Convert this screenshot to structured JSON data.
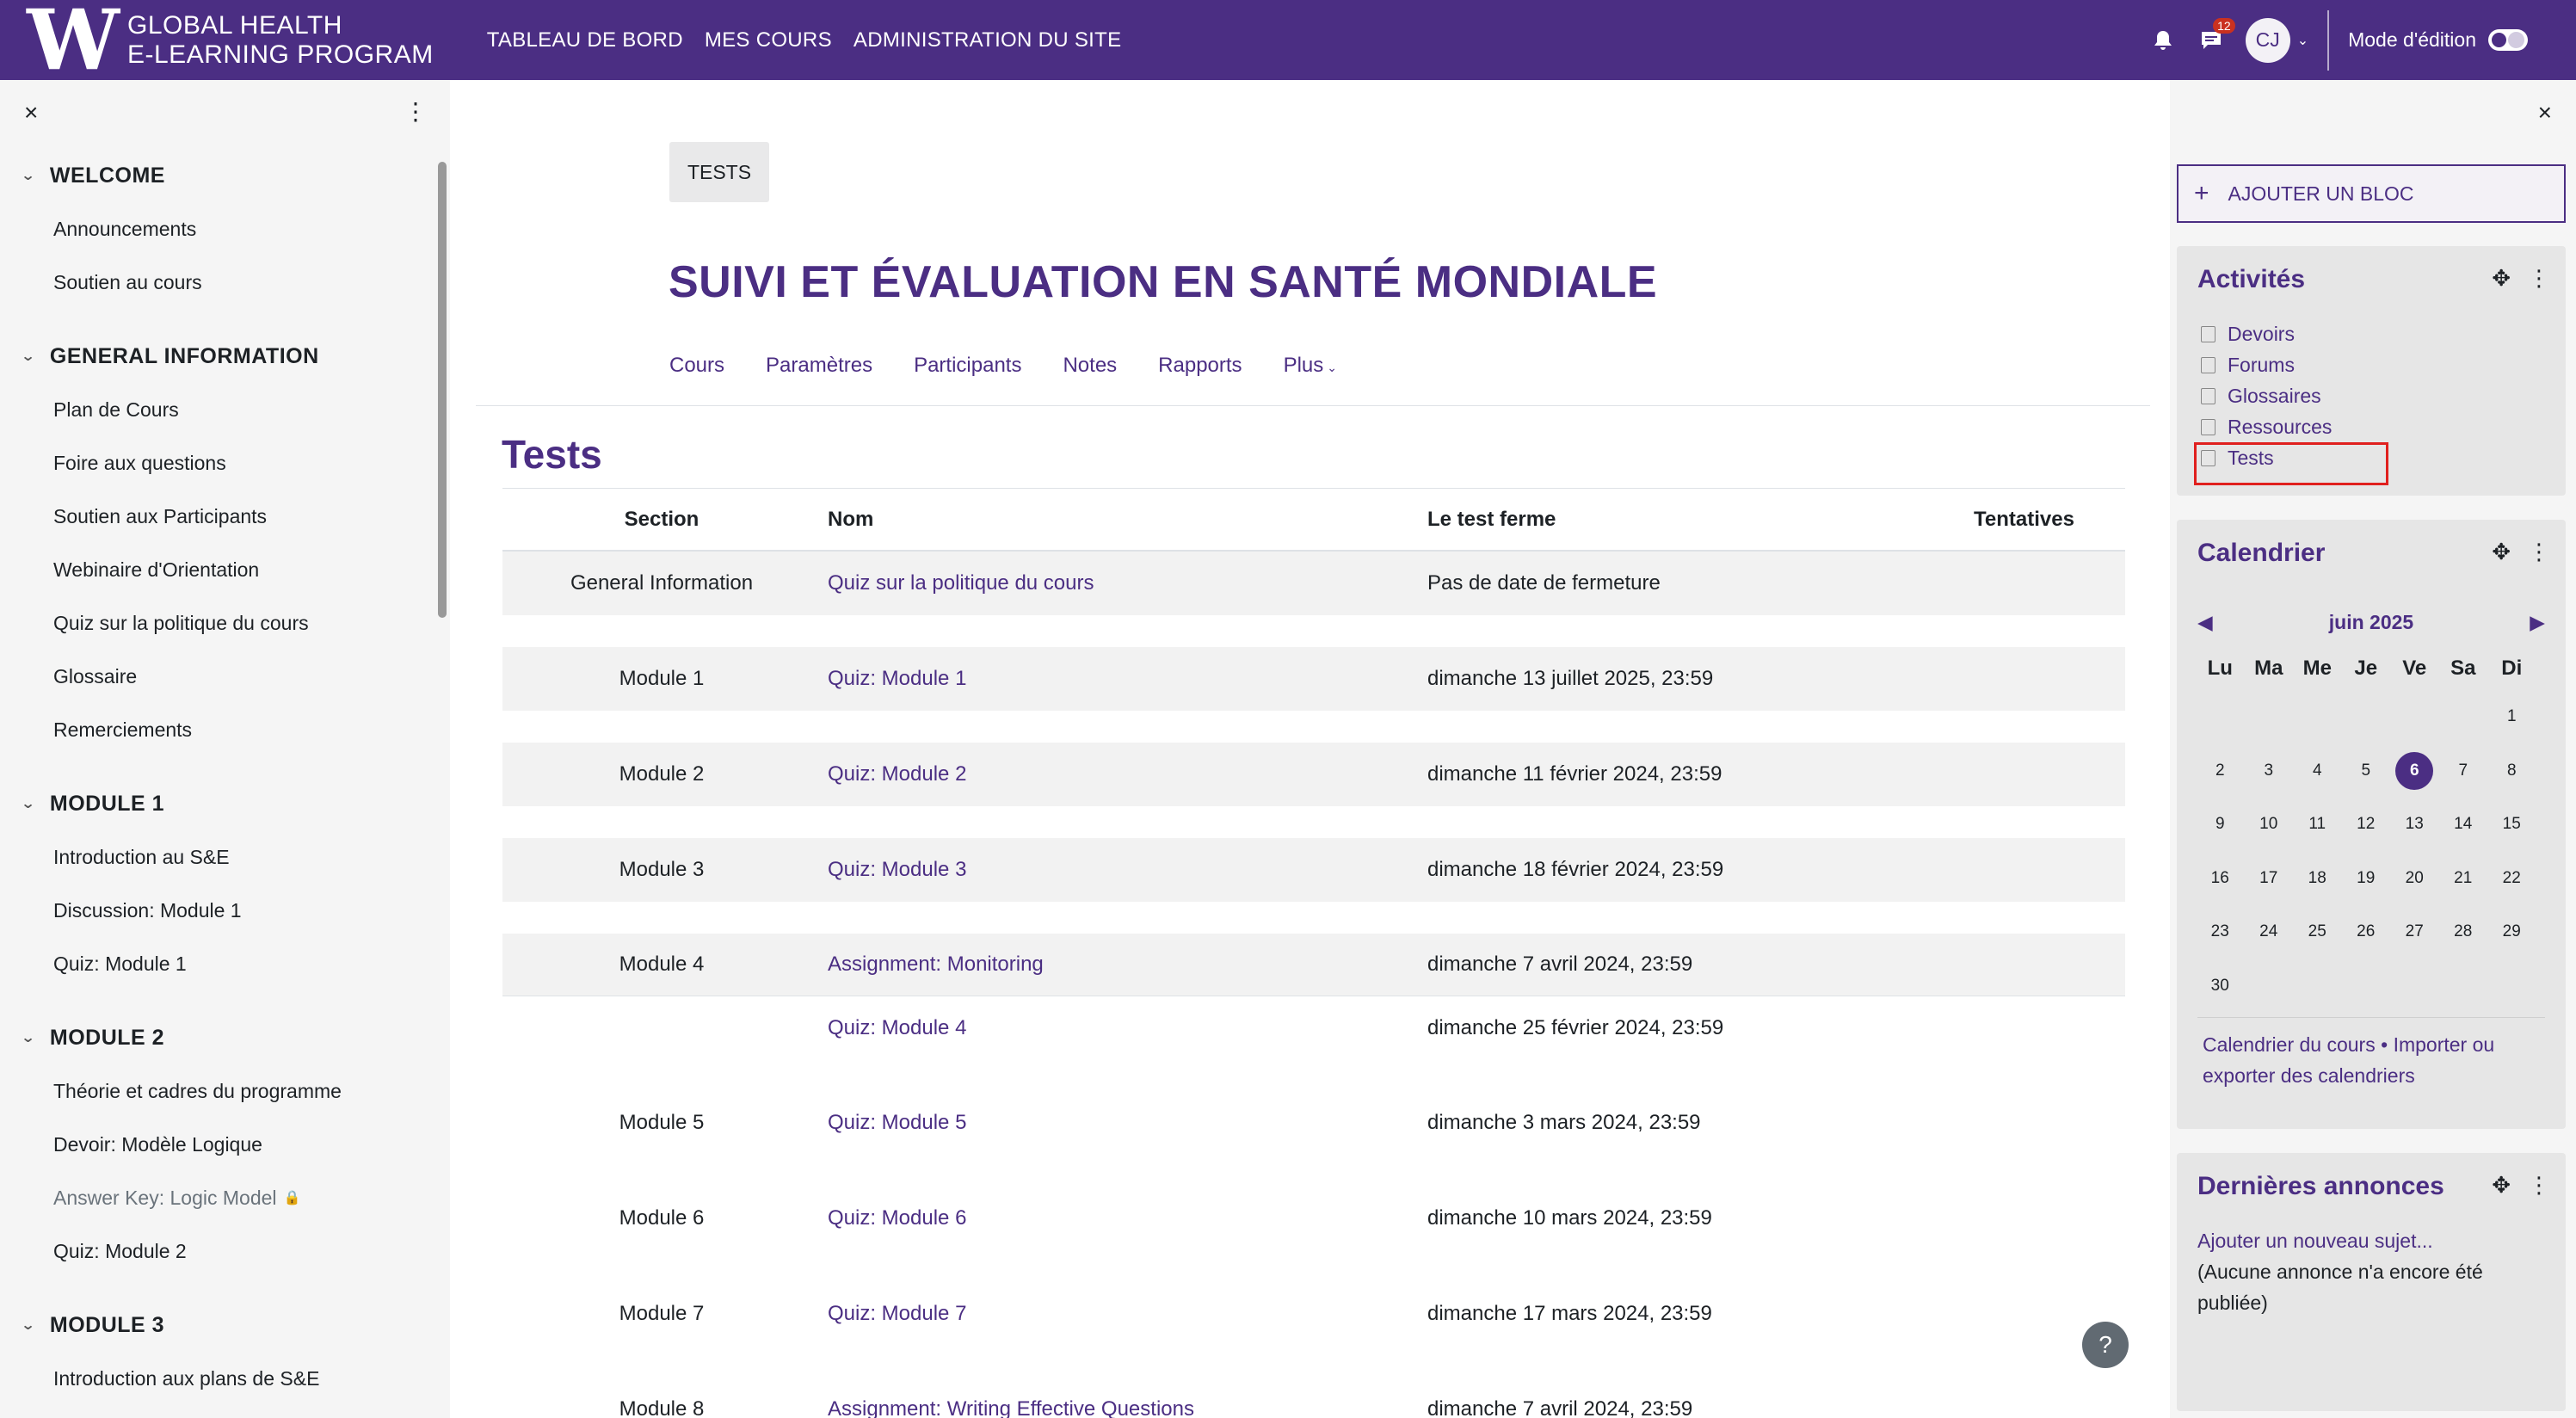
{
  "navbar": {
    "logo_letter": "W",
    "brand_line1": "GLOBAL HEALTH",
    "brand_line2": "E-LEARNING PROGRAM",
    "links": [
      "TABLEAU DE BORD",
      "MES COURS",
      "ADMINISTRATION DU SITE"
    ],
    "message_count": "12",
    "avatar_initials": "CJ",
    "edit_mode_label": "Mode d'édition",
    "bell_icon": "bell-icon",
    "chat_icon": "chat-icon",
    "brand_color": "#4b2e83"
  },
  "left_drawer": {
    "close_icon": "×",
    "menu_icon": "⋮",
    "sections": [
      {
        "title": "WELCOME",
        "items": [
          "Announcements",
          "Soutien au cours"
        ]
      },
      {
        "title": "GENERAL INFORMATION",
        "items": [
          "Plan de Cours",
          "Foire aux questions",
          "Soutien aux Participants",
          "Webinaire d'Orientation",
          "Quiz sur la politique du cours",
          "Glossaire",
          "Remerciements"
        ]
      },
      {
        "title": "MODULE 1",
        "items": [
          "Introduction au S&E",
          "Discussion: Module 1",
          "Quiz: Module 1"
        ]
      },
      {
        "title": "MODULE 2",
        "items": [
          "Théorie et cadres du programme",
          "Devoir: Modèle Logique",
          "Answer Key: Logic Model",
          "Quiz: Module 2"
        ]
      },
      {
        "title": "MODULE 3",
        "items": [
          "Introduction aux plans de S&E"
        ]
      }
    ]
  },
  "main": {
    "breadcrumb": "TESTS",
    "course_title": "SUIVI ET ÉVALUATION EN SANTÉ MONDIALE",
    "course_nav": [
      "Cours",
      "Paramètres",
      "Participants",
      "Notes",
      "Rapports",
      "Plus"
    ],
    "page_heading": "Tests",
    "table": {
      "headers": [
        "Section",
        "Nom",
        "Le test ferme",
        "Tentatives"
      ],
      "rows": [
        {
          "section": "General Information",
          "name": "Quiz sur la politique du cours",
          "closes": "Pas de date de fermeture"
        },
        {
          "section": "Module 1",
          "name": "Quiz: Module 1",
          "closes": "dimanche 13 juillet 2025, 23:59"
        },
        {
          "section": "Module 2",
          "name": "Quiz: Module 2",
          "closes": "dimanche 11 février 2024, 23:59"
        },
        {
          "section": "Module 3",
          "name": "Quiz: Module 3",
          "closes": "dimanche 18 février 2024, 23:59"
        },
        {
          "section": "Module 4",
          "name": "Assignment: Monitoring",
          "closes": "dimanche 7 avril 2024, 23:59"
        },
        {
          "section": "",
          "name": "Quiz: Module 4",
          "closes": "dimanche 25 février 2024, 23:59"
        },
        {
          "section": "Module 5",
          "name": "Quiz: Module 5",
          "closes": "dimanche 3 mars 2024, 23:59"
        },
        {
          "section": "Module 6",
          "name": "Quiz: Module 6",
          "closes": "dimanche 10 mars 2024, 23:59"
        },
        {
          "section": "Module 7",
          "name": "Quiz: Module 7",
          "closes": "dimanche 17 mars 2024, 23:59"
        },
        {
          "section": "Module 8",
          "name": "Assignment: Writing Effective Questions",
          "closes": "dimanche 7 avril 2024, 23:59"
        }
      ]
    },
    "help_label": "?"
  },
  "right_drawer": {
    "close_icon": "×",
    "add_block_label": "AJOUTER UN BLOC",
    "activities": {
      "title": "Activités",
      "items": [
        "Devoirs",
        "Forums",
        "Glossaires",
        "Ressources",
        "Tests"
      ],
      "highlighted": "Tests"
    },
    "calendar": {
      "title": "Calendrier",
      "month": "juin 2025",
      "weekdays": [
        "Lu",
        "Ma",
        "Me",
        "Je",
        "Ve",
        "Sa",
        "Di"
      ],
      "weeks": [
        [
          "",
          "",
          "",
          "",
          "",
          "",
          "1"
        ],
        [
          "2",
          "3",
          "4",
          "5",
          "6",
          "7",
          "8"
        ],
        [
          "9",
          "10",
          "11",
          "12",
          "13",
          "14",
          "15"
        ],
        [
          "16",
          "17",
          "18",
          "19",
          "20",
          "21",
          "22"
        ],
        [
          "23",
          "24",
          "25",
          "26",
          "27",
          "28",
          "29"
        ],
        [
          "30",
          "",
          "",
          "",
          "",
          "",
          ""
        ]
      ],
      "today": "6",
      "footer_link1": "Calendrier du cours",
      "footer_sep": " • ",
      "footer_link2": "Importer ou exporter des calendriers"
    },
    "news": {
      "title": "Dernières annonces",
      "add_link": "Ajouter un nouveau sujet...",
      "empty_text": "(Aucune annonce n'a encore été publiée)"
    }
  }
}
